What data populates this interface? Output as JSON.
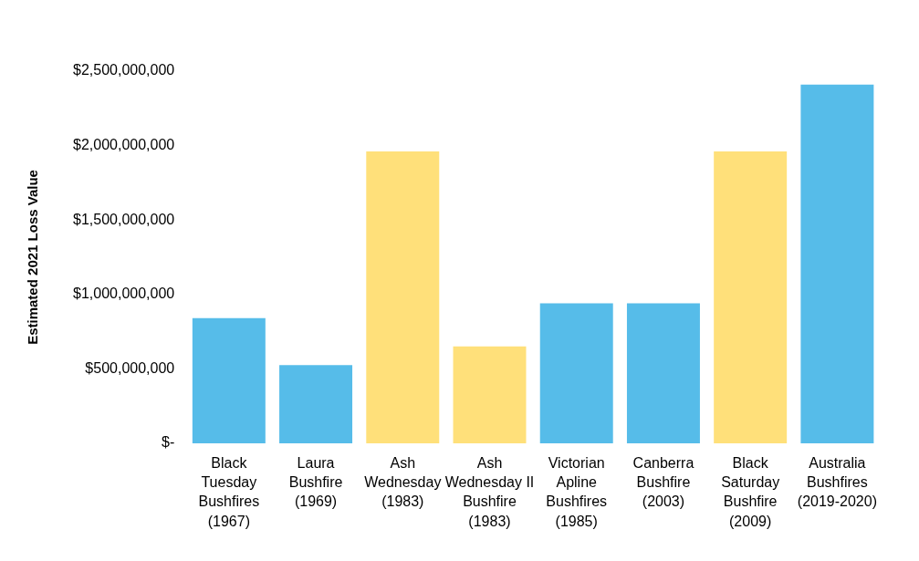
{
  "chart_data": {
    "type": "bar",
    "y_label": "Estimated 2021 Loss Value",
    "categories": [
      "Black\nTuesday\nBushfires\n(1967)",
      "Laura\nBushfire\n(1969)",
      "Ash\nWednesday\n(1983)",
      "Ash\nWednesday II\nBushfire\n(1983)",
      "Victorian\nApline\nBushfires\n(1985)",
      "Canberra\nBushfire\n(2003)",
      "Black\nSaturday\nBushfire\n(2009)",
      "Australia\nBushfires\n(2019-2020)"
    ],
    "values": [
      840000000,
      525000000,
      1960000000,
      650000000,
      940000000,
      940000000,
      1960000000,
      2410000000
    ],
    "colors": [
      "#56bce9",
      "#56bce9",
      "#ffe07a",
      "#ffe07a",
      "#56bce9",
      "#56bce9",
      "#ffe07a",
      "#56bce9"
    ],
    "ylim": [
      0,
      2500000000
    ],
    "yticks": [
      {
        "value": 0,
        "label": "$-"
      },
      {
        "value": 500000000,
        "label": "$500,000,000"
      },
      {
        "value": 1000000000,
        "label": "$1,000,000,000"
      },
      {
        "value": 1500000000,
        "label": "$1,500,000,000"
      },
      {
        "value": 2000000000,
        "label": "$2,000,000,000"
      },
      {
        "value": 2500000000,
        "label": "$2,500,000,000"
      }
    ],
    "grid": false,
    "data_labels": false
  }
}
